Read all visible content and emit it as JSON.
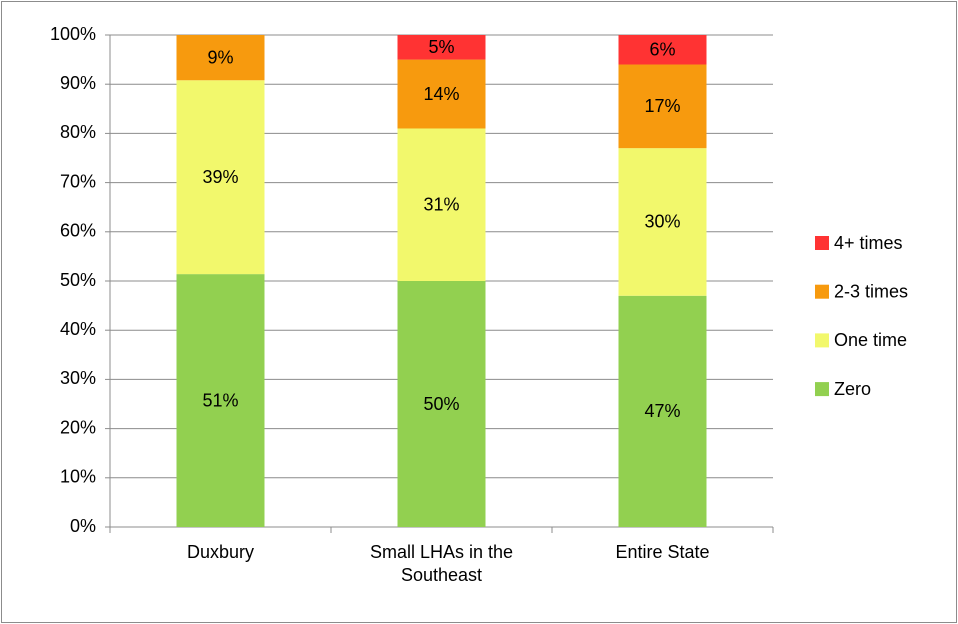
{
  "chart_data": {
    "type": "stacked_bar",
    "categories": [
      "Duxbury",
      "Small LHAs in the Southeast",
      "Entire State"
    ],
    "series": [
      {
        "name": "Zero",
        "color": "#92d050",
        "values": [
          51.4,
          50,
          47
        ],
        "value_labels": [
          "51%",
          "50%",
          "47%"
        ]
      },
      {
        "name": "One time",
        "color": "#f2f86c",
        "values": [
          39.4,
          31,
          30
        ],
        "value_labels": [
          "39%",
          "31%",
          "30%"
        ]
      },
      {
        "name": "2-3 times",
        "color": "#f79a0e",
        "values": [
          9.2,
          14,
          17
        ],
        "value_labels": [
          "9%",
          "14%",
          "17%"
        ]
      },
      {
        "name": "4+ times",
        "color": "#ff3333",
        "values": [
          null,
          5,
          6
        ],
        "value_labels": [
          null,
          "5%",
          "6%"
        ]
      }
    ],
    "ylim": [
      0,
      100
    ],
    "yticks": [
      {
        "value": 0,
        "label": "0%"
      },
      {
        "value": 10,
        "label": "10%"
      },
      {
        "value": 20,
        "label": "20%"
      },
      {
        "value": 30,
        "label": "30%"
      },
      {
        "value": 40,
        "label": "40%"
      },
      {
        "value": 50,
        "label": "50%"
      },
      {
        "value": 60,
        "label": "60%"
      },
      {
        "value": 70,
        "label": "70%"
      },
      {
        "value": 80,
        "label": "80%"
      },
      {
        "value": 90,
        "label": "90%"
      },
      {
        "value": 100,
        "label": "100%"
      }
    ],
    "grid": true,
    "legend": "right"
  }
}
